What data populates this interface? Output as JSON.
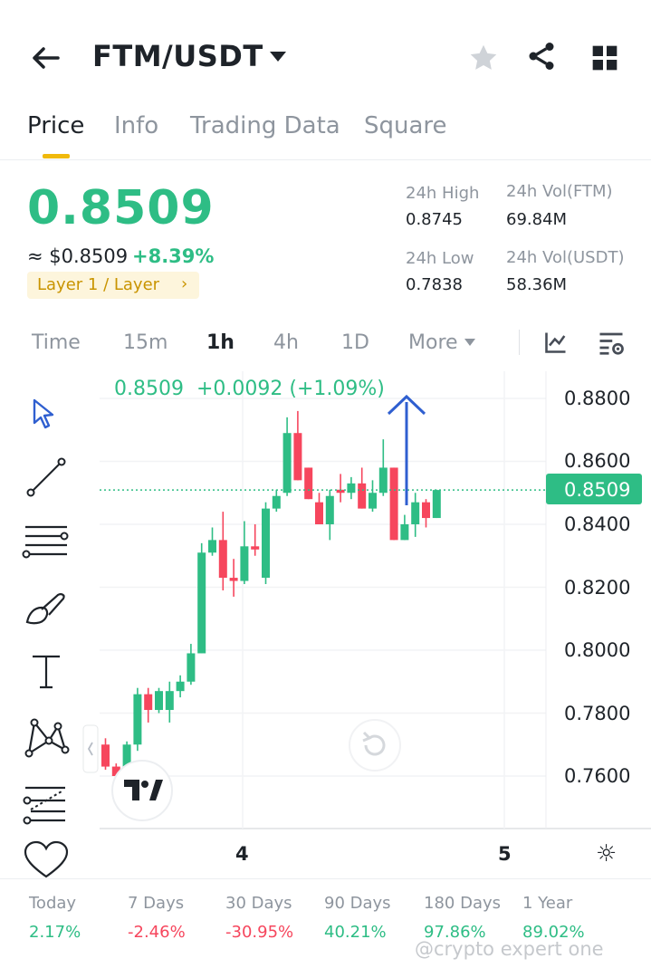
{
  "header": {
    "pair": "FTM/USDT",
    "back_icon": "arrow-left-icon",
    "favorite_icon": "star-icon",
    "share_icon": "share-icon",
    "grid_icon": "grid-icon"
  },
  "tabs": [
    {
      "label": "Price",
      "active": true
    },
    {
      "label": "Info",
      "active": false
    },
    {
      "label": "Trading Data",
      "active": false
    },
    {
      "label": "Square",
      "active": false
    }
  ],
  "ticker": {
    "last_price": "0.8509",
    "usd_price": "≈ $0.8509",
    "change_pct": "+8.39%",
    "tag": "Layer 1 / Layer",
    "tag_arrow": "›",
    "high_label": "24h High",
    "high_value": "0.8745",
    "low_label": "24h Low",
    "low_value": "0.7838",
    "vol_base_label": "24h Vol(FTM)",
    "vol_base_value": "69.84M",
    "vol_quote_label": "24h Vol(USDT)",
    "vol_quote_value": "58.36M"
  },
  "timeframes": [
    {
      "label": "Time",
      "active": false
    },
    {
      "label": "15m",
      "active": false
    },
    {
      "label": "1h",
      "active": true
    },
    {
      "label": "4h",
      "active": false
    },
    {
      "label": "1D",
      "active": false
    },
    {
      "label": "More",
      "active": false
    }
  ],
  "chart_tools": {
    "indicator_icon": "chart-indicator-icon",
    "settings_icon": "chart-settings-icon"
  },
  "drawing_tools": [
    "cursor-icon",
    "trend-line-icon",
    "horizontal-lines-icon",
    "brush-icon",
    "text-icon",
    "pattern-icon",
    "fib-icon",
    "heart-icon"
  ],
  "chart_data": {
    "type": "candlestick",
    "legend": "0.8509  +0.0092 (+1.09%)",
    "last_price_label": "0.8509",
    "last_price": 0.8509,
    "y_ticks": [
      "0.8800",
      "0.8600",
      "0.8400",
      "0.8200",
      "0.8000",
      "0.7800",
      "0.7600"
    ],
    "x_ticks": [
      "4",
      "5"
    ],
    "ylim": [
      0.7535,
      0.8935
    ],
    "annotation": "blue-upward-arrow",
    "candles": [
      {
        "o": 0.77,
        "h": 0.772,
        "l": 0.762,
        "c": 0.763
      },
      {
        "o": 0.763,
        "h": 0.764,
        "l": 0.758,
        "c": 0.76
      },
      {
        "o": 0.76,
        "h": 0.771,
        "l": 0.759,
        "c": 0.77
      },
      {
        "o": 0.77,
        "h": 0.788,
        "l": 0.768,
        "c": 0.786
      },
      {
        "o": 0.786,
        "h": 0.788,
        "l": 0.777,
        "c": 0.781
      },
      {
        "o": 0.781,
        "h": 0.788,
        "l": 0.78,
        "c": 0.787
      },
      {
        "o": 0.781,
        "h": 0.79,
        "l": 0.777,
        "c": 0.787
      },
      {
        "o": 0.787,
        "h": 0.792,
        "l": 0.785,
        "c": 0.79
      },
      {
        "o": 0.79,
        "h": 0.802,
        "l": 0.789,
        "c": 0.799
      },
      {
        "o": 0.799,
        "h": 0.834,
        "l": 0.799,
        "c": 0.831
      },
      {
        "o": 0.831,
        "h": 0.839,
        "l": 0.83,
        "c": 0.835
      },
      {
        "o": 0.835,
        "h": 0.844,
        "l": 0.819,
        "c": 0.823
      },
      {
        "o": 0.823,
        "h": 0.829,
        "l": 0.817,
        "c": 0.822
      },
      {
        "o": 0.822,
        "h": 0.841,
        "l": 0.821,
        "c": 0.833
      },
      {
        "o": 0.833,
        "h": 0.84,
        "l": 0.83,
        "c": 0.832
      },
      {
        "o": 0.823,
        "h": 0.847,
        "l": 0.821,
        "c": 0.845
      },
      {
        "o": 0.845,
        "h": 0.851,
        "l": 0.844,
        "c": 0.849
      },
      {
        "o": 0.85,
        "h": 0.874,
        "l": 0.849,
        "c": 0.869
      },
      {
        "o": 0.869,
        "h": 0.876,
        "l": 0.854,
        "c": 0.854
      },
      {
        "o": 0.858,
        "h": 0.858,
        "l": 0.848,
        "c": 0.848
      },
      {
        "o": 0.847,
        "h": 0.85,
        "l": 0.84,
        "c": 0.84
      },
      {
        "o": 0.84,
        "h": 0.851,
        "l": 0.835,
        "c": 0.849
      },
      {
        "o": 0.851,
        "h": 0.856,
        "l": 0.847,
        "c": 0.85
      },
      {
        "o": 0.85,
        "h": 0.855,
        "l": 0.848,
        "c": 0.853
      },
      {
        "o": 0.853,
        "h": 0.858,
        "l": 0.845,
        "c": 0.845
      },
      {
        "o": 0.845,
        "h": 0.854,
        "l": 0.844,
        "c": 0.85
      },
      {
        "o": 0.85,
        "h": 0.867,
        "l": 0.849,
        "c": 0.858
      },
      {
        "o": 0.858,
        "h": 0.858,
        "l": 0.835,
        "c": 0.835
      },
      {
        "o": 0.835,
        "h": 0.843,
        "l": 0.835,
        "c": 0.84
      },
      {
        "o": 0.84,
        "h": 0.85,
        "l": 0.836,
        "c": 0.847
      },
      {
        "o": 0.847,
        "h": 0.848,
        "l": 0.839,
        "c": 0.842
      },
      {
        "o": 0.842,
        "h": 0.851,
        "l": 0.842,
        "c": 0.8509
      }
    ]
  },
  "performance": [
    {
      "label": "Today",
      "value": "2.17%",
      "dir": "up"
    },
    {
      "label": "7 Days",
      "value": "-2.46%",
      "dir": "down"
    },
    {
      "label": "30 Days",
      "value": "-30.95%",
      "dir": "down"
    },
    {
      "label": "90 Days",
      "value": "40.21%",
      "dir": "up"
    },
    {
      "label": "180 Days",
      "value": "97.86%",
      "dir": "up"
    },
    {
      "label": "1 Year",
      "value": "89.02%",
      "dir": "up"
    }
  ],
  "watermark": "@crypto expert one",
  "colors": {
    "up": "#2ebd85",
    "down": "#f6465d",
    "accent": "#f0b90b",
    "annotation": "#2f5fd0"
  }
}
